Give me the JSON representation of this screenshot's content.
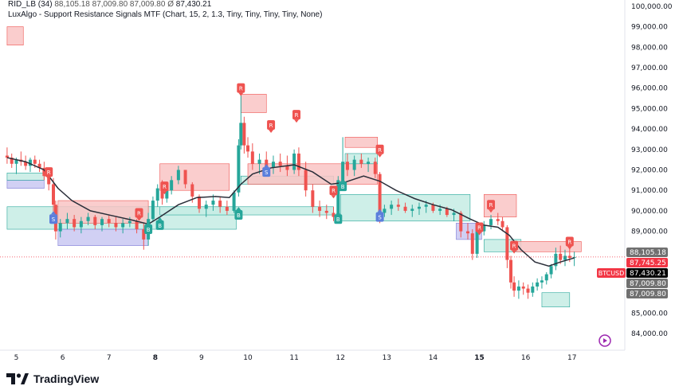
{
  "header": {
    "symbol_line": "RID_LB (34)",
    "o": "88,105.18",
    "h": "87,009.80",
    "l": "87,009.80",
    "symbol_sign": "Ø",
    "c": "87,430.21",
    "indicator": "LuxAlgo - Support Resistance Signals MTF (Chart, 15, 2, 1.3, Tiny, Tiny, Tiny, Tiny, None)"
  },
  "footer": {
    "brand": "TradingView"
  },
  "colors": {
    "up": "#26a69a",
    "down": "#ef5350",
    "ma": "#2a2e39",
    "res_zone": "#f9c4c4",
    "sup_zone": "#c5ece4",
    "blue_zone": "#c9c8f2",
    "label_bg": "#707070",
    "price_bg": "#000000",
    "btc_bg": "#f23645"
  },
  "chart_data": {
    "type": "line",
    "title": "",
    "x_ticks": [
      "5",
      "6",
      "7",
      "8",
      "9",
      "10",
      "11",
      "12",
      "13",
      "14",
      "15",
      "16",
      "17"
    ],
    "bold_ticks": [
      "8",
      "15"
    ],
    "y_ticks": [
      "100,000.00",
      "99,000.00",
      "98,000.00",
      "97,000.00",
      "96,000.00",
      "95,000.00",
      "94,000.00",
      "93,000.00",
      "92,000.00",
      "91,000.00",
      "90,000.00",
      "89,000.00",
      "88,000.00",
      "87,000.00",
      "86,000.00",
      "85,000.00",
      "84,000.00"
    ],
    "ylim": [
      83500,
      100150
    ],
    "xlim": [
      4.75,
      17.9
    ],
    "price_labels": [
      {
        "text": "88,105.18",
        "style": "grey"
      },
      {
        "text": "BTCUSD",
        "style": "btc"
      },
      {
        "text": "87,745.25",
        "style": "btc"
      },
      {
        "text": "87,430.21",
        "style": "black"
      },
      {
        "text": "87,009.80",
        "style": "grey"
      },
      {
        "text": "87,009.80",
        "style": "grey"
      }
    ],
    "price_line": 87745.25,
    "candles": [
      [
        4.8,
        92700,
        93100,
        92300,
        92600
      ],
      [
        4.9,
        92600,
        92800,
        92100,
        92300
      ],
      [
        5.0,
        92300,
        92600,
        91800,
        92500
      ],
      [
        5.1,
        92500,
        92900,
        92200,
        92400
      ],
      [
        5.2,
        92400,
        92700,
        92000,
        92200
      ],
      [
        5.3,
        92200,
        92600,
        91900,
        92500
      ],
      [
        5.4,
        92500,
        92700,
        92100,
        92300
      ],
      [
        5.5,
        92300,
        92500,
        91900,
        92100
      ],
      [
        5.6,
        92100,
        92400,
        91500,
        91700
      ],
      [
        5.7,
        91700,
        92000,
        91000,
        91300
      ],
      [
        5.8,
        91300,
        91600,
        89800,
        90300
      ],
      [
        5.85,
        90300,
        90500,
        88600,
        89000
      ],
      [
        5.95,
        89000,
        89600,
        88700,
        89400
      ],
      [
        6.1,
        89400,
        89900,
        89100,
        89600
      ],
      [
        6.25,
        89600,
        89800,
        89000,
        89200
      ],
      [
        6.4,
        89200,
        89700,
        88900,
        89500
      ],
      [
        6.55,
        89500,
        89900,
        89300,
        89700
      ],
      [
        6.7,
        89700,
        89800,
        89100,
        89300
      ],
      [
        6.85,
        89300,
        89700,
        89000,
        89600
      ],
      [
        7.0,
        89600,
        89800,
        89200,
        89400
      ],
      [
        7.15,
        89400,
        89700,
        89000,
        89200
      ],
      [
        7.3,
        89200,
        89600,
        88900,
        89400
      ],
      [
        7.45,
        89400,
        89700,
        89200,
        89500
      ],
      [
        7.6,
        89500,
        89600,
        88900,
        89100
      ],
      [
        7.75,
        89100,
        89400,
        88100,
        88600
      ],
      [
        7.85,
        88600,
        89900,
        88300,
        89600
      ],
      [
        7.95,
        89600,
        90700,
        89500,
        90500
      ],
      [
        8.05,
        90500,
        91300,
        90200,
        91100
      ],
      [
        8.15,
        91100,
        91500,
        90300,
        90600
      ],
      [
        8.25,
        90600,
        91200,
        90400,
        91000
      ],
      [
        8.35,
        91000,
        91700,
        90800,
        91500
      ],
      [
        8.5,
        91500,
        92200,
        91300,
        92000
      ],
      [
        8.65,
        92000,
        91900,
        91100,
        91300
      ],
      [
        8.8,
        91300,
        91400,
        90400,
        90700
      ],
      [
        8.95,
        90700,
        90800,
        89900,
        90100
      ],
      [
        9.1,
        90100,
        90500,
        89700,
        90300
      ],
      [
        9.25,
        90300,
        90800,
        90000,
        90500
      ],
      [
        9.4,
        90500,
        90700,
        89900,
        90200
      ],
      [
        9.55,
        90200,
        90500,
        89800,
        90000
      ],
      [
        9.7,
        90000,
        91000,
        89900,
        90900
      ],
      [
        9.8,
        90900,
        93500,
        90700,
        93200
      ],
      [
        9.85,
        93200,
        95800,
        93000,
        94300
      ],
      [
        9.92,
        94300,
        94600,
        92800,
        93200
      ],
      [
        10.0,
        93200,
        93600,
        92600,
        92900
      ],
      [
        10.1,
        92900,
        93300,
        92000,
        92300
      ],
      [
        10.25,
        92300,
        92800,
        91800,
        92500
      ],
      [
        10.4,
        92500,
        92900,
        91900,
        92100
      ],
      [
        10.55,
        92100,
        92700,
        91800,
        92400
      ],
      [
        10.7,
        92400,
        92800,
        91900,
        92200
      ],
      [
        10.85,
        92200,
        92700,
        91700,
        92000
      ],
      [
        11.0,
        92000,
        93000,
        91800,
        92800
      ],
      [
        11.1,
        92800,
        93100,
        91700,
        92000
      ],
      [
        11.25,
        92000,
        92400,
        90700,
        91000
      ],
      [
        11.4,
        91000,
        91300,
        89900,
        90200
      ],
      [
        11.55,
        90200,
        90500,
        89700,
        90000
      ],
      [
        11.7,
        90000,
        90300,
        89600,
        89900
      ],
      [
        11.85,
        89900,
        90200,
        89500,
        89700
      ],
      [
        11.95,
        89700,
        91700,
        89500,
        91500
      ],
      [
        12.05,
        91500,
        93600,
        91300,
        92400
      ],
      [
        12.15,
        92400,
        92800,
        91700,
        92000
      ],
      [
        12.3,
        92000,
        92700,
        91700,
        92500
      ],
      [
        12.45,
        92500,
        92800,
        92100,
        92300
      ],
      [
        12.6,
        92300,
        92600,
        91900,
        92400
      ],
      [
        12.75,
        92400,
        92600,
        91600,
        91800
      ],
      [
        12.85,
        91800,
        91900,
        89400,
        89900
      ],
      [
        12.95,
        89900,
        90300,
        89700,
        90100
      ],
      [
        13.1,
        90100,
        90500,
        89800,
        90300
      ],
      [
        13.25,
        90300,
        90600,
        90000,
        90200
      ],
      [
        13.4,
        90200,
        90400,
        89900,
        90000
      ],
      [
        13.55,
        90000,
        90300,
        89700,
        90100
      ],
      [
        13.7,
        90100,
        90400,
        89800,
        90200
      ],
      [
        13.85,
        90200,
        90500,
        89900,
        90300
      ],
      [
        14.0,
        90300,
        90400,
        89900,
        90000
      ],
      [
        14.15,
        90000,
        90300,
        89800,
        90100
      ],
      [
        14.3,
        90100,
        90200,
        89700,
        89800
      ],
      [
        14.45,
        89800,
        90100,
        89500,
        89900
      ],
      [
        14.6,
        89900,
        90000,
        88700,
        89000
      ],
      [
        14.75,
        89000,
        89400,
        88600,
        88900
      ],
      [
        14.85,
        88900,
        89100,
        87600,
        87900
      ],
      [
        14.95,
        87900,
        89300,
        87700,
        89000
      ],
      [
        15.1,
        89000,
        89500,
        88800,
        89300
      ],
      [
        15.25,
        89300,
        89800,
        89100,
        89600
      ],
      [
        15.4,
        89600,
        89900,
        89300,
        89500
      ],
      [
        15.5,
        89500,
        89700,
        89000,
        89200
      ],
      [
        15.6,
        89200,
        89300,
        87200,
        87600
      ],
      [
        15.68,
        87600,
        87800,
        86200,
        86500
      ],
      [
        15.75,
        86500,
        86800,
        85800,
        86100
      ],
      [
        15.85,
        86100,
        86600,
        85700,
        86300
      ],
      [
        15.95,
        86300,
        86500,
        85900,
        86200
      ],
      [
        16.05,
        86200,
        86400,
        85700,
        86000
      ],
      [
        16.15,
        86000,
        86500,
        85800,
        86300
      ],
      [
        16.25,
        86300,
        86700,
        86100,
        86500
      ],
      [
        16.35,
        86500,
        86800,
        86200,
        86600
      ],
      [
        16.45,
        86600,
        87000,
        86400,
        86900
      ],
      [
        16.55,
        86900,
        87400,
        86700,
        87300
      ],
      [
        16.65,
        87300,
        88200,
        87100,
        87900
      ],
      [
        16.75,
        87900,
        88300,
        87400,
        87600
      ],
      [
        16.85,
        87600,
        88100,
        87300,
        87800
      ],
      [
        16.95,
        87800,
        88300,
        87500,
        87700
      ],
      [
        17.05,
        87700,
        88000,
        87300,
        87745
      ]
    ],
    "ma_line": [
      [
        4.8,
        92600
      ],
      [
        5.2,
        92400
      ],
      [
        5.6,
        92000
      ],
      [
        5.9,
        91100
      ],
      [
        6.2,
        90500
      ],
      [
        6.6,
        90000
      ],
      [
        7.0,
        89800
      ],
      [
        7.5,
        89550
      ],
      [
        7.85,
        89350
      ],
      [
        8.1,
        89700
      ],
      [
        8.5,
        90300
      ],
      [
        8.9,
        90650
      ],
      [
        9.3,
        90700
      ],
      [
        9.6,
        90650
      ],
      [
        9.85,
        91300
      ],
      [
        10.1,
        91800
      ],
      [
        10.5,
        92100
      ],
      [
        11.0,
        92250
      ],
      [
        11.4,
        91900
      ],
      [
        11.8,
        91300
      ],
      [
        12.1,
        91400
      ],
      [
        12.5,
        91700
      ],
      [
        12.85,
        91450
      ],
      [
        13.2,
        91000
      ],
      [
        13.6,
        90600
      ],
      [
        14.0,
        90300
      ],
      [
        14.4,
        90050
      ],
      [
        14.8,
        89600
      ],
      [
        15.1,
        89300
      ],
      [
        15.4,
        89200
      ],
      [
        15.65,
        88800
      ],
      [
        15.9,
        88100
      ],
      [
        16.2,
        87500
      ],
      [
        16.5,
        87300
      ],
      [
        16.75,
        87500
      ],
      [
        17.05,
        87700
      ]
    ],
    "zones": [
      {
        "x0": 4.8,
        "x1": 5.15,
        "y0": 98100,
        "y1": 99000,
        "kind": "res"
      },
      {
        "x0": 4.8,
        "x1": 5.6,
        "y0": 91100,
        "y1": 91500,
        "kind": "blue"
      },
      {
        "x0": 4.8,
        "x1": 5.6,
        "y0": 91500,
        "y1": 91850,
        "kind": "sup"
      },
      {
        "x0": 4.8,
        "x1": 9.75,
        "y0": 89100,
        "y1": 90200,
        "kind": "sup"
      },
      {
        "x0": 5.9,
        "x1": 7.85,
        "y0": 89400,
        "y1": 90500,
        "kind": "res"
      },
      {
        "x0": 5.9,
        "x1": 7.85,
        "y0": 88300,
        "y1": 89100,
        "kind": "blue"
      },
      {
        "x0": 8.1,
        "x1": 9.6,
        "y0": 91000,
        "y1": 92300,
        "kind": "res"
      },
      {
        "x0": 8.1,
        "x1": 11.85,
        "y0": 89800,
        "y1": 90200,
        "kind": "sup"
      },
      {
        "x0": 9.85,
        "x1": 10.4,
        "y0": 94800,
        "y1": 95700,
        "kind": "res"
      },
      {
        "x0": 9.85,
        "x1": 11.85,
        "y0": 91300,
        "y1": 91700,
        "kind": "sup"
      },
      {
        "x0": 10.0,
        "x1": 12.8,
        "y0": 91300,
        "y1": 92300,
        "kind": "res"
      },
      {
        "x0": 12.1,
        "x1": 12.8,
        "y0": 93100,
        "y1": 93600,
        "kind": "res"
      },
      {
        "x0": 12.1,
        "x1": 12.8,
        "y0": 92300,
        "y1": 92800,
        "kind": "sup"
      },
      {
        "x0": 12.0,
        "x1": 14.8,
        "y0": 89500,
        "y1": 90800,
        "kind": "sup"
      },
      {
        "x0": 14.5,
        "x1": 15.05,
        "y0": 88600,
        "y1": 89400,
        "kind": "blue"
      },
      {
        "x0": 15.1,
        "x1": 15.8,
        "y0": 89700,
        "y1": 90800,
        "kind": "res"
      },
      {
        "x0": 15.1,
        "x1": 15.9,
        "y0": 88000,
        "y1": 88600,
        "kind": "sup"
      },
      {
        "x0": 15.8,
        "x1": 17.2,
        "y0": 88000,
        "y1": 88500,
        "kind": "res"
      },
      {
        "x0": 16.35,
        "x1": 16.95,
        "y0": 85300,
        "y1": 86000,
        "kind": "sup"
      }
    ],
    "markers": [
      {
        "x": 5.7,
        "y": 91900,
        "dir": "down",
        "letter": "R"
      },
      {
        "x": 5.8,
        "y": 89600,
        "dir": "up",
        "letter": "S"
      },
      {
        "x": 7.65,
        "y": 89900,
        "dir": "down",
        "letter": "R"
      },
      {
        "x": 7.85,
        "y": 89100,
        "dir": "up",
        "letter": "B"
      },
      {
        "x": 8.1,
        "y": 89300,
        "dir": "up",
        "letter": "B"
      },
      {
        "x": 8.2,
        "y": 91200,
        "dir": "down",
        "letter": "R"
      },
      {
        "x": 9.8,
        "y": 89800,
        "dir": "up",
        "letter": "B"
      },
      {
        "x": 9.85,
        "y": 96000,
        "dir": "down",
        "letter": "R"
      },
      {
        "x": 10.4,
        "y": 91900,
        "dir": "up",
        "letter": "S"
      },
      {
        "x": 10.5,
        "y": 94200,
        "dir": "down",
        "letter": "R"
      },
      {
        "x": 11.05,
        "y": 94700,
        "dir": "down",
        "letter": "R"
      },
      {
        "x": 11.85,
        "y": 91000,
        "dir": "down",
        "letter": "R"
      },
      {
        "x": 11.95,
        "y": 89600,
        "dir": "up",
        "letter": "B"
      },
      {
        "x": 12.05,
        "y": 91200,
        "dir": "up",
        "letter": "B"
      },
      {
        "x": 12.85,
        "y": 93000,
        "dir": "down",
        "letter": "R"
      },
      {
        "x": 12.85,
        "y": 89700,
        "dir": "up",
        "letter": "S"
      },
      {
        "x": 15.0,
        "y": 89200,
        "dir": "down",
        "letter": "R"
      },
      {
        "x": 15.25,
        "y": 90300,
        "dir": "down",
        "letter": "R"
      },
      {
        "x": 15.75,
        "y": 88300,
        "dir": "down",
        "letter": "R"
      },
      {
        "x": 16.95,
        "y": 88500,
        "dir": "down",
        "letter": "R"
      }
    ]
  }
}
